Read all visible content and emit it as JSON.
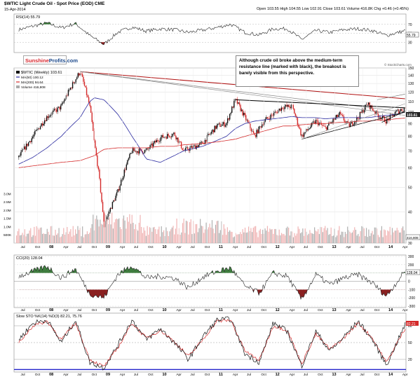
{
  "header": {
    "symbol_title": "$WTIC Light Crude Oil - Spot Price (EOD) CME",
    "date": "15-Apr-2014",
    "ohlc": "Open 103.55  High 104.55  Low 102.91  Close 103.61  Volume 416.8K  Chg +0.46 (+0.45%)",
    "credit": "© StockCharts.com"
  },
  "logo": {
    "part1": "Sunshine",
    "part2": "Profits.com"
  },
  "annotation": "Although crude oil broke above the medium-term resistance line (marked with black), the breakout is barely visible from this perspective.",
  "colors": {
    "up": "#111111",
    "down": "#d42a2a",
    "ma50": "#2b2ba0",
    "ma200": "#d42a2a",
    "resistance_red": "#b01010",
    "indicator_fill_green": "#3f7d3f",
    "indicator_fill_red": "#8a2020",
    "volume": "#b0b0b0"
  },
  "chart_data": [
    {
      "type": "line",
      "title": "RSI(14) 55.79",
      "ylim": [
        10,
        90
      ],
      "levels": [
        70,
        50,
        30
      ],
      "tick_labels": [
        "70",
        "50",
        "30"
      ],
      "current_label": "55.79",
      "x": [
        "2007-06",
        "2007-09",
        "2007-12",
        "2008-03",
        "2008-06",
        "2008-09",
        "2008-12",
        "2009-03",
        "2009-06",
        "2009-09",
        "2009-12",
        "2010-03",
        "2010-06",
        "2010-09",
        "2010-12",
        "2011-03",
        "2011-06",
        "2011-09",
        "2011-12",
        "2012-03",
        "2012-06",
        "2012-09",
        "2012-12",
        "2013-03",
        "2013-06",
        "2013-09",
        "2013-12",
        "2014-04"
      ],
      "values": [
        58,
        66,
        73,
        62,
        72,
        45,
        25,
        52,
        64,
        55,
        60,
        58,
        52,
        57,
        63,
        70,
        52,
        46,
        60,
        60,
        36,
        56,
        52,
        58,
        60,
        56,
        45,
        56
      ]
    },
    {
      "type": "line",
      "title": "$WTIC (Weekly) 103.61",
      "ylim": [
        30,
        150
      ],
      "y_tick_labels": [
        "150",
        "140",
        "130",
        "120",
        "110",
        "100",
        "90",
        "80",
        "70",
        "60",
        "50",
        "40",
        "30"
      ],
      "x_tick_labels": [
        "Jul",
        "Oct",
        "08",
        "Apr",
        "Jul",
        "Oct",
        "09",
        "Apr",
        "Jul",
        "Oct",
        "10",
        "Apr",
        "Jul",
        "Oct",
        "11",
        "Apr",
        "Jul",
        "Oct",
        "12",
        "Apr",
        "Jul",
        "Oct",
        "13",
        "Apr",
        "Jul",
        "Oct",
        "14",
        "Apr"
      ],
      "current_label": "103.61",
      "legend": [
        {
          "name": "$WTIC (Weekly) 103.61",
          "color": "#111111"
        },
        {
          "name": "MA(50) 100.12",
          "color": "#2b2ba0"
        },
        {
          "name": "MA(200) 94.64",
          "color": "#d42a2a"
        },
        {
          "name": "Volume 416,808",
          "color": "#888888"
        }
      ],
      "x": [
        "2007-06",
        "2007-09",
        "2007-12",
        "2008-03",
        "2008-07",
        "2008-09",
        "2008-10",
        "2008-12",
        "2009-03",
        "2009-06",
        "2009-09",
        "2009-12",
        "2010-03",
        "2010-05",
        "2010-09",
        "2010-12",
        "2011-02",
        "2011-04",
        "2011-06",
        "2011-08",
        "2011-10",
        "2011-12",
        "2012-02",
        "2012-04",
        "2012-06",
        "2012-09",
        "2012-11",
        "2013-02",
        "2013-04",
        "2013-06",
        "2013-08",
        "2013-10",
        "2013-12",
        "2014-02",
        "2014-04"
      ],
      "series": [
        {
          "name": "$WTIC (Weekly)",
          "values": [
            66,
            80,
            96,
            105,
            145,
            105,
            75,
            35,
            48,
            70,
            70,
            79,
            82,
            70,
            75,
            88,
            90,
            112,
            95,
            80,
            92,
            98,
            105,
            105,
            80,
            92,
            86,
            98,
            88,
            95,
            108,
            98,
            92,
            100,
            104
          ]
        },
        {
          "name": "MA(50)",
          "values": [
            62,
            66,
            72,
            80,
            95,
            110,
            114,
            112,
            98,
            80,
            65,
            63,
            67,
            70,
            73,
            77,
            80,
            86,
            90,
            92,
            93,
            94,
            95,
            96,
            95,
            95,
            94,
            95,
            95,
            95,
            95,
            96,
            97,
            98,
            100
          ]
        },
        {
          "name": "MA(200)",
          "values": [
            60,
            61,
            62,
            63,
            64,
            66,
            67,
            71,
            72,
            72,
            72,
            73,
            73,
            74,
            75,
            76,
            77,
            78,
            80,
            82,
            84,
            86,
            88,
            88,
            89,
            90,
            90,
            91,
            91,
            92,
            92,
            93,
            93,
            94,
            94.64
          ]
        }
      ]
    },
    {
      "type": "bar",
      "title": "Volume",
      "y_tick_labels": [
        "3.0M",
        "2.5M",
        "2.0M",
        "1.5M",
        "1.0M",
        "500K"
      ],
      "current_label": "416,808"
    },
    {
      "type": "line",
      "title": "CCI(20) 128.04",
      "ylim": [
        -300,
        300
      ],
      "tick_labels": [
        "300",
        "200",
        "100",
        "0",
        "-100",
        "-200",
        "-300"
      ],
      "current_label": "128.04",
      "x": [
        "2007-06",
        "2007-09",
        "2007-12",
        "2008-03",
        "2008-06",
        "2008-09",
        "2008-12",
        "2009-03",
        "2009-06",
        "2009-09",
        "2009-12",
        "2010-03",
        "2010-06",
        "2010-09",
        "2010-12",
        "2011-03",
        "2011-06",
        "2011-09",
        "2011-12",
        "2012-03",
        "2012-06",
        "2012-09",
        "2012-12",
        "2013-03",
        "2013-06",
        "2013-09",
        "2013-12",
        "2014-04"
      ],
      "values": [
        60,
        120,
        180,
        40,
        150,
        -150,
        -200,
        80,
        190,
        40,
        60,
        40,
        -80,
        50,
        120,
        160,
        -60,
        -140,
        100,
        60,
        -220,
        80,
        -40,
        40,
        80,
        -20,
        -180,
        128
      ]
    },
    {
      "type": "line",
      "title": "Slow STO %K(14) %D(3) 82.21, 75.76",
      "ylim": [
        0,
        100
      ],
      "tick_labels": [
        "80",
        "50",
        "20"
      ],
      "current_label": "82.21",
      "x": [
        "2007-06",
        "2007-09",
        "2007-12",
        "2008-03",
        "2008-06",
        "2008-09",
        "2008-12",
        "2009-03",
        "2009-06",
        "2009-09",
        "2009-12",
        "2010-03",
        "2010-06",
        "2010-09",
        "2010-12",
        "2011-03",
        "2011-06",
        "2011-09",
        "2011-12",
        "2012-03",
        "2012-06",
        "2012-09",
        "2012-12",
        "2013-03",
        "2013-06",
        "2013-09",
        "2013-12",
        "2014-04"
      ],
      "series": [
        {
          "name": "%K",
          "values": [
            55,
            85,
            90,
            50,
            90,
            15,
            5,
            45,
            90,
            55,
            75,
            50,
            20,
            60,
            90,
            92,
            30,
            15,
            85,
            70,
            8,
            70,
            35,
            60,
            88,
            55,
            10,
            82.21
          ]
        },
        {
          "name": "%D",
          "values": [
            50,
            80,
            88,
            55,
            85,
            20,
            7,
            40,
            85,
            58,
            72,
            52,
            25,
            55,
            88,
            90,
            35,
            18,
            80,
            72,
            12,
            65,
            38,
            58,
            85,
            58,
            14,
            75.76
          ]
        }
      ]
    }
  ]
}
